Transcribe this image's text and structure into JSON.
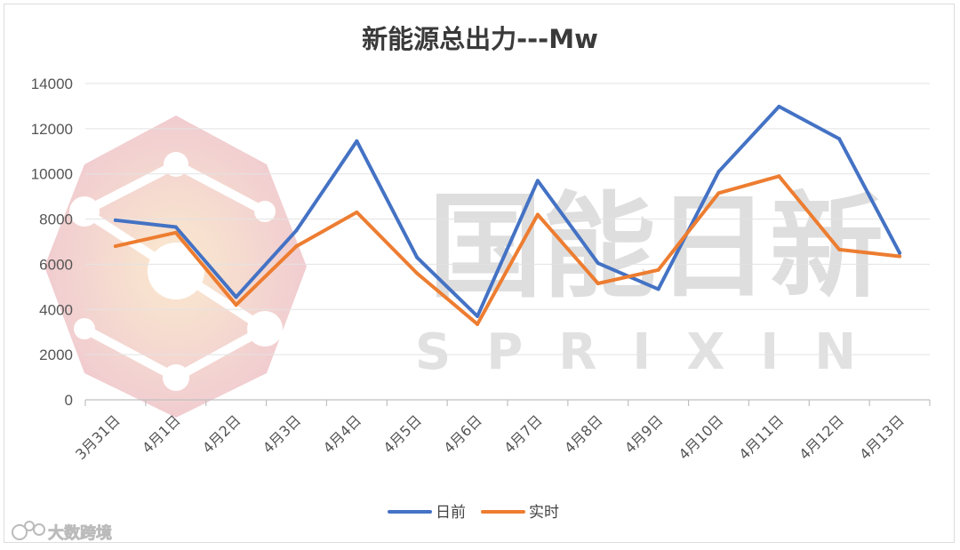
{
  "chart_data": {
    "type": "line",
    "title": "新能源总出力---Mw",
    "categories": [
      "3月31日",
      "4月1日",
      "4月2日",
      "4月3日",
      "4月4日",
      "4月5日",
      "4月6日",
      "4月7日",
      "4月8日",
      "4月9日",
      "4月10日",
      "4月11日",
      "4月12日",
      "4月13日"
    ],
    "series": [
      {
        "name": "日前",
        "color": "#4472c4",
        "values": [
          7950,
          7650,
          4550,
          7500,
          11450,
          6300,
          3700,
          9700,
          6050,
          4900,
          10100,
          12980,
          11550,
          6500
        ]
      },
      {
        "name": "实时",
        "color": "#ed7d31",
        "values": [
          6800,
          7400,
          4200,
          6800,
          8300,
          5600,
          3350,
          8200,
          5150,
          5750,
          9150,
          9900,
          6650,
          6350
        ]
      }
    ],
    "ylim": [
      0,
      14000
    ],
    "yticks": [
      "14000",
      "12000",
      "10000",
      "8000",
      "6000",
      "4000",
      "2000",
      "0"
    ],
    "grid": true,
    "legend": "bottom"
  },
  "watermark": {
    "text_cn": "国能日新",
    "text_en": "SPRIXIN",
    "color": "#d9d9d9",
    "logo_color": "#e8a0a8"
  },
  "brand": {
    "text": "大数跨境"
  }
}
